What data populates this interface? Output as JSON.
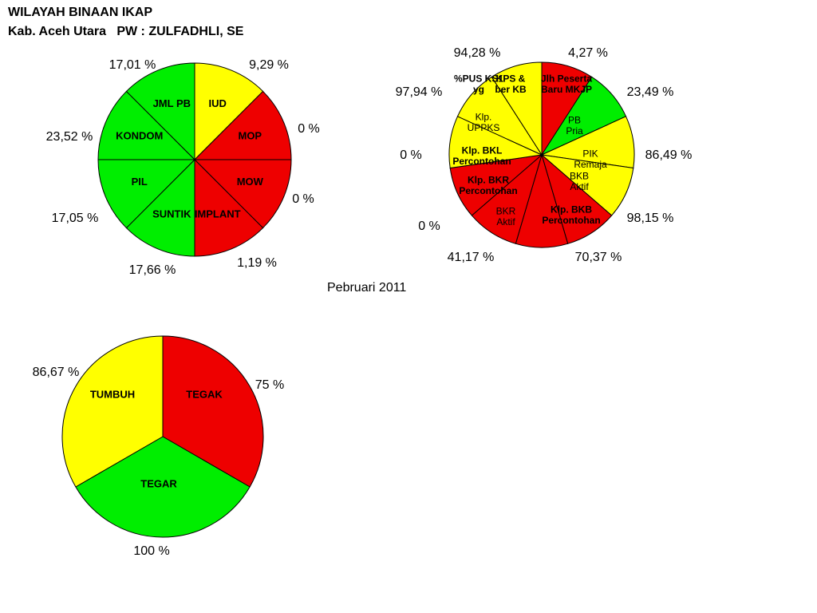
{
  "header": {
    "line1": "WILAYAH BINAAN IKAP",
    "line2": "Kab. Aceh Utara   PW : ZULFADHLI, SE"
  },
  "period": "Pebruari  2011",
  "colors": {
    "green": "#00ee00",
    "yellow": "#ffff00",
    "red": "#ee0000"
  },
  "chart_data": [
    {
      "type": "pie",
      "name": "kontrasepsi",
      "slices": [
        {
          "label": "IUD",
          "percent_label": "9,29 %",
          "color": "yellow"
        },
        {
          "label": "MOP",
          "percent_label": "0 %",
          "color": "red"
        },
        {
          "label": "MOW",
          "percent_label": "0 %",
          "color": "red"
        },
        {
          "label": "IMPLANT",
          "percent_label": "1,19 %",
          "color": "red"
        },
        {
          "label": "SUNTIK",
          "percent_label": "17,66 %",
          "color": "green"
        },
        {
          "label": "PIL",
          "percent_label": "17,05 %",
          "color": "green"
        },
        {
          "label": "KONDOM",
          "percent_label": "23,52 %",
          "color": "green"
        },
        {
          "label": "JML PB",
          "percent_label": "17,01 %",
          "color": "green"
        }
      ]
    },
    {
      "type": "pie",
      "name": "indikator",
      "slices": [
        {
          "label": "Jlh Peserta Baru MKJP",
          "percent_label": "4,27 %",
          "color": "red",
          "bold": true
        },
        {
          "label": "PB Pria",
          "percent_label": "23,49 %",
          "color": "green"
        },
        {
          "label": "PIK Remaja",
          "percent_label": "86,49 %",
          "color": "yellow"
        },
        {
          "label": "BKB Aktif",
          "percent_label": "98,15 %",
          "color": "yellow"
        },
        {
          "label": "Klp. BKB Percontohan",
          "percent_label": "70,37 %",
          "color": "red",
          "bold": true
        },
        {
          "label": "BKR Aktif",
          "percent_label": "41,17 %",
          "color": "red"
        },
        {
          "label": "Klp. BKR Percontohan",
          "percent_label": "0 %",
          "color": "red",
          "bold": true
        },
        {
          "label": "Klp. BKL Percontohan",
          "percent_label": "0 %",
          "color": "red",
          "bold": true
        },
        {
          "label": "Klp. UPPKS",
          "percent_label": "97,94 %",
          "color": "yellow"
        },
        {
          "label": "%PUS KS1 yg",
          "percent_label": "",
          "color": "yellow",
          "bold": true
        },
        {
          "label": "KPS & ber KB",
          "percent_label": "94,28 %",
          "color": "yellow",
          "bold": true
        }
      ]
    },
    {
      "type": "pie",
      "name": "tahapan",
      "slices": [
        {
          "label": "TEGAK",
          "percent_label": "75 %",
          "color": "red"
        },
        {
          "label": "TEGAR",
          "percent_label": "100 %",
          "color": "green"
        },
        {
          "label": "TUMBUH",
          "percent_label": "86,67 %",
          "color": "yellow"
        }
      ]
    }
  ]
}
